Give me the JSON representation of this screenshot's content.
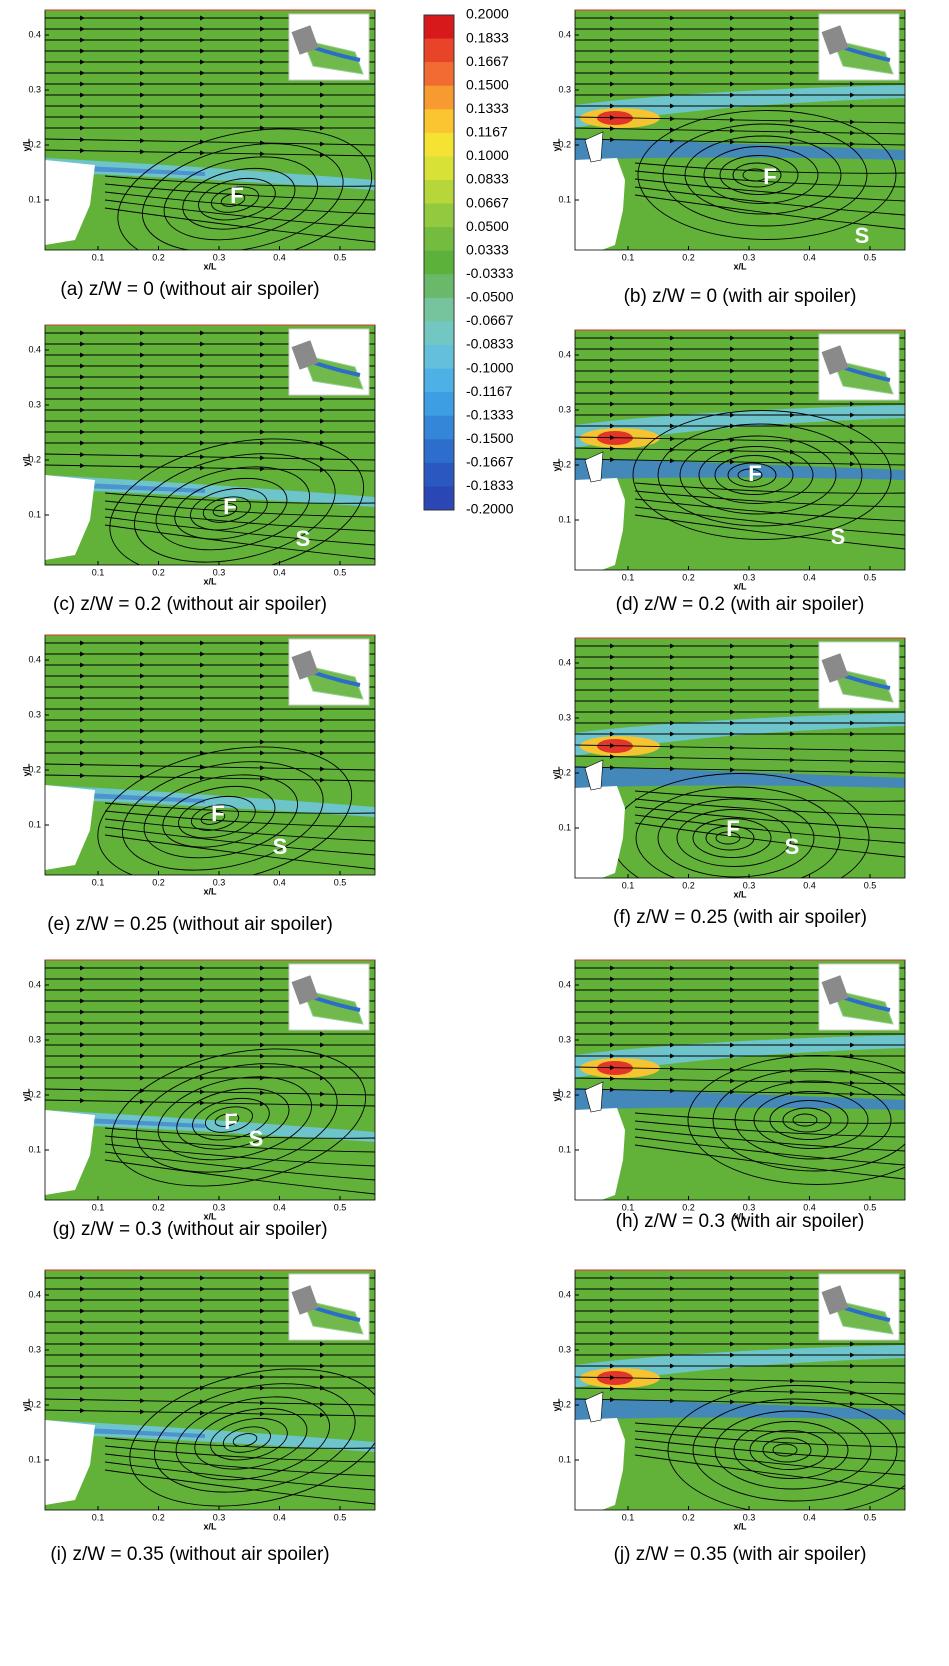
{
  "colorbar": {
    "labels": [
      "0.2000",
      "0.1833",
      "0.1667",
      "0.1500",
      "0.1333",
      "0.1167",
      "0.1000",
      "0.0833",
      "0.0667",
      "0.0500",
      "0.0333",
      "-0.0333",
      "-0.0500",
      "-0.0667",
      "-0.0833",
      "-0.1000",
      "-0.1167",
      "-0.1333",
      "-0.1500",
      "-0.1667",
      "-0.1833",
      "-0.2000"
    ]
  },
  "panels": [
    {
      "caption": "(a) z/W = 0 (without air spoiler)",
      "x_label": "x/L",
      "y_label": "y/L",
      "x_ticks": [
        "0.1",
        "0.2",
        "0.3",
        "0.4",
        "0.5"
      ],
      "y_ticks": [
        "0.4",
        "0.3",
        "0.2",
        "0.1"
      ],
      "markers": [
        "F"
      ]
    },
    {
      "caption": "(b) z/W = 0 (with air spoiler)",
      "x_label": "x/L",
      "y_label": "y/L",
      "x_ticks": [
        "0.1",
        "0.2",
        "0.3",
        "0.4",
        "0.5"
      ],
      "y_ticks": [
        "0.4",
        "0.3",
        "0.2",
        "0.1"
      ],
      "markers": [
        "F",
        "S"
      ]
    },
    {
      "caption": "(c) z/W = 0.2 (without air spoiler)",
      "x_label": "x/L",
      "y_label": "y/L",
      "x_ticks": [
        "0.1",
        "0.2",
        "0.3",
        "0.4",
        "0.5"
      ],
      "y_ticks": [
        "0.4",
        "0.3",
        "0.2",
        "0.1"
      ],
      "markers": [
        "F",
        "S"
      ]
    },
    {
      "caption": "(d) z/W = 0.2 (with air spoiler)",
      "x_label": "x/L",
      "y_label": "y/L",
      "x_ticks": [
        "0.1",
        "0.2",
        "0.3",
        "0.4",
        "0.5"
      ],
      "y_ticks": [
        "0.4",
        "0.3",
        "0.2",
        "0.1"
      ],
      "markers": [
        "F",
        "S"
      ]
    },
    {
      "caption": "(e) z/W = 0.25 (without air spoiler)",
      "x_label": "x/L",
      "y_label": "y/L",
      "x_ticks": [
        "0.1",
        "0.2",
        "0.3",
        "0.4",
        "0.5"
      ],
      "y_ticks": [
        "0.4",
        "0.3",
        "0.2",
        "0.1"
      ],
      "markers": [
        "F",
        "S"
      ]
    },
    {
      "caption": "(f) z/W = 0.25 (with air spoiler)",
      "x_label": "x/L",
      "y_label": "y/L",
      "x_ticks": [
        "0.1",
        "0.2",
        "0.3",
        "0.4",
        "0.5"
      ],
      "y_ticks": [
        "0.4",
        "0.3",
        "0.2",
        "0.1"
      ],
      "markers": [
        "F",
        "S"
      ]
    },
    {
      "caption": "(g) z/W = 0.3 (without air spoiler)",
      "x_label": "x/L",
      "y_label": "y/L",
      "x_ticks": [
        "0.1",
        "0.2",
        "0.3",
        "0.4",
        "0.5"
      ],
      "y_ticks": [
        "0.4",
        "0.3",
        "0.2",
        "0.1"
      ],
      "markers": [
        "F",
        "S"
      ]
    },
    {
      "caption": "(h) z/W = 0.3 (with air spoiler)",
      "x_label": "x/L",
      "y_label": "y/L",
      "x_ticks": [
        "0.1",
        "0.2",
        "0.3",
        "0.4",
        "0.5"
      ],
      "y_ticks": [
        "0.4",
        "0.3",
        "0.2",
        "0.1"
      ],
      "markers": []
    },
    {
      "caption": "(i) z/W = 0.35 (without air spoiler)",
      "x_label": "x/L",
      "y_label": "y/L",
      "x_ticks": [
        "0.1",
        "0.2",
        "0.3",
        "0.4",
        "0.5"
      ],
      "y_ticks": [
        "0.4",
        "0.3",
        "0.2",
        "0.1"
      ],
      "markers": []
    },
    {
      "caption": "(j) z/W = 0.35 (with air spoiler)",
      "x_label": "x/L",
      "y_label": "y/L",
      "x_ticks": [
        "0.1",
        "0.2",
        "0.3",
        "0.4",
        "0.5"
      ],
      "y_ticks": [
        "0.4",
        "0.3",
        "0.2",
        "0.1"
      ],
      "markers": []
    }
  ]
}
